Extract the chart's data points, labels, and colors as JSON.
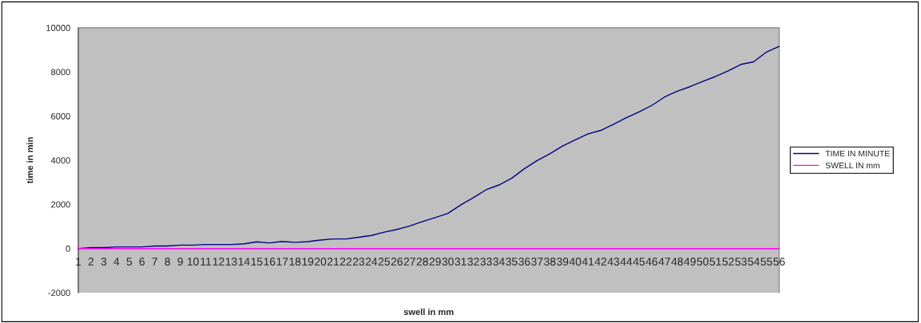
{
  "chart_data": {
    "type": "line",
    "xlabel": "swell in mm",
    "ylabel": "time in min",
    "categories": [
      "1",
      "2",
      "3",
      "4",
      "5",
      "6",
      "7",
      "8",
      "9",
      "10",
      "11",
      "12",
      "13",
      "14",
      "15",
      "16",
      "17",
      "18",
      "19",
      "20",
      "21",
      "22",
      "23",
      "24",
      "25",
      "26",
      "27",
      "28",
      "29",
      "30",
      "31",
      "32",
      "33",
      "34",
      "35",
      "36",
      "37",
      "38",
      "39",
      "40",
      "41",
      "42",
      "43",
      "44",
      "45",
      "46",
      "47",
      "48",
      "49",
      "50",
      "51",
      "52",
      "53",
      "54",
      "55",
      "56"
    ],
    "series": [
      {
        "name": "TIME IN MINUTE",
        "color": "#000080",
        "values": [
          0,
          40,
          40,
          70,
          70,
          70,
          110,
          110,
          150,
          150,
          180,
          180,
          180,
          210,
          300,
          250,
          320,
          280,
          310,
          380,
          430,
          430,
          510,
          590,
          740,
          860,
          1020,
          1220,
          1400,
          1590,
          1970,
          2300,
          2660,
          2875,
          3180,
          3610,
          3985,
          4290,
          4640,
          4920,
          5190,
          5350,
          5630,
          5920,
          6190,
          6480,
          6860,
          7125,
          7330,
          7570,
          7790,
          8050,
          8340,
          8460,
          8900,
          9160
        ]
      },
      {
        "name": "SWELL IN mm",
        "color": "#ff00ff",
        "values": [
          0,
          0,
          0,
          0,
          0,
          0,
          0,
          0,
          0,
          0,
          0,
          0,
          0,
          0,
          0,
          0,
          0,
          0,
          0,
          0,
          0,
          0,
          0,
          0,
          0,
          0,
          0,
          0,
          0,
          0,
          0,
          0,
          0,
          0,
          0,
          0,
          0,
          0,
          0,
          0,
          0,
          0,
          0,
          0,
          0,
          0,
          0,
          0,
          0,
          0,
          0,
          0,
          0,
          0,
          0,
          0
        ]
      }
    ],
    "ylim": [
      -2000,
      10000
    ],
    "yticks": [
      -2000,
      0,
      2000,
      4000,
      6000,
      8000,
      10000
    ],
    "grid": false,
    "legend": "right",
    "marker": "none",
    "line_style": "solid"
  }
}
